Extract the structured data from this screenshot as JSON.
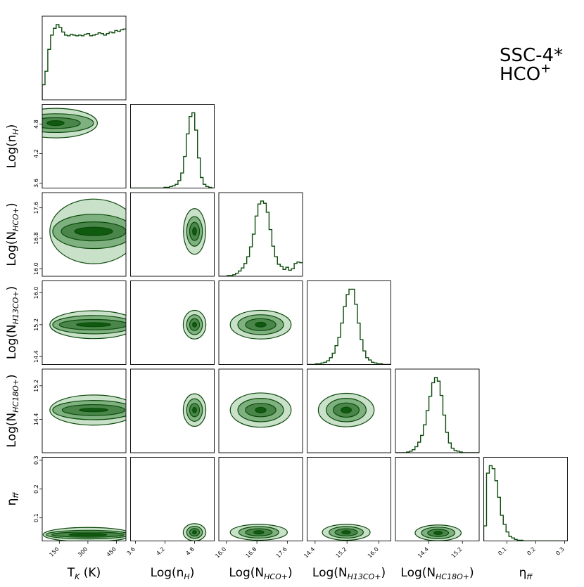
{
  "chart_data": {
    "type": "corner",
    "title": [
      "SSC-4*",
      "HCO",
      "+"
    ],
    "colors": {
      "line": "#0b4a0b",
      "fill1": "#c9e0c9",
      "fill2": "#7fb07f",
      "fill3": "#4a854a",
      "fill4": "#0f5a0f"
    },
    "parameters": [
      {
        "name": "T_K",
        "ylabel": "",
        "xlabel_main": "T",
        "xlabel_sub": "K",
        "xlabel_tail": " (K)",
        "range": [
          60,
          500
        ],
        "ticks": [
          "150",
          "300",
          "450"
        ]
      },
      {
        "name": "log_nH",
        "ylabel_main": "Log(n",
        "ylabel_sub": "H",
        "ylabel_tail": ")",
        "xlabel_main": "Log(n",
        "xlabel_sub": "H",
        "xlabel_tail": ")",
        "range": [
          3.5,
          5.2
        ],
        "ticks": [
          "3.6",
          "4.2",
          "4.8"
        ]
      },
      {
        "name": "log_N_HCO+",
        "ylabel_main": "Log(N",
        "ylabel_sub": "HCO+",
        "ylabel_tail": ")",
        "xlabel_main": "Log(N",
        "xlabel_sub": "HCO+",
        "xlabel_tail": ")",
        "range": [
          15.8,
          18.0
        ],
        "ticks": [
          "16.0",
          "16.8",
          "17.6"
        ]
      },
      {
        "name": "log_N_H13CO+",
        "ylabel_main": "Log(N",
        "ylabel_sub": "H13CO+",
        "ylabel_tail": ")",
        "xlabel_main": "Log(N",
        "xlabel_sub": "H13CO+",
        "xlabel_tail": ")",
        "range": [
          14.2,
          16.3
        ],
        "ticks": [
          "14.4",
          "15.2",
          "16.0"
        ]
      },
      {
        "name": "log_N_HC18O+",
        "ylabel_main": "Log(N",
        "ylabel_sub": "HC18O+",
        "ylabel_tail": ")",
        "xlabel_main": "Log(N",
        "xlabel_sub": "HC18O+",
        "xlabel_tail": ")",
        "range": [
          13.6,
          15.6
        ],
        "ticks": [
          "14.4",
          "15.2"
        ]
      },
      {
        "name": "eta_ff",
        "ylabel_main": "η",
        "ylabel_sub": "ff",
        "ylabel_tail": "",
        "xlabel_main": "η",
        "xlabel_sub": "ff",
        "xlabel_tail": "",
        "range": [
          0.02,
          0.31
        ],
        "ticks": [
          "0.1",
          "0.2",
          "0.3"
        ]
      }
    ],
    "histograms": [
      [
        0.2,
        0.38,
        0.67,
        0.86,
        0.95,
        1.0,
        0.96,
        0.9,
        0.86,
        0.85,
        0.87,
        0.86,
        0.85,
        0.86,
        0.85,
        0.87,
        0.88,
        0.85,
        0.86,
        0.87,
        0.89,
        0.88,
        0.86,
        0.88,
        0.9,
        0.89,
        0.92,
        0.91,
        0.93,
        0.94
      ],
      [
        0.0,
        0.0,
        0.0,
        0.0,
        0.0,
        0.0,
        0.0,
        0.0,
        0.0,
        0.0,
        0.0,
        0.0,
        0.01,
        0.01,
        0.02,
        0.03,
        0.05,
        0.1,
        0.2,
        0.42,
        0.72,
        0.95,
        1.0,
        0.77,
        0.4,
        0.14,
        0.05,
        0.02,
        0.01,
        0.0
      ],
      [
        0.0,
        0.0,
        0.0,
        0.01,
        0.01,
        0.02,
        0.04,
        0.07,
        0.11,
        0.17,
        0.26,
        0.39,
        0.56,
        0.8,
        0.96,
        1.0,
        0.97,
        0.85,
        0.62,
        0.4,
        0.26,
        0.16,
        0.13,
        0.09,
        0.12,
        0.08,
        0.1,
        0.17,
        0.19,
        0.18
      ],
      [
        0.0,
        0.0,
        0.0,
        0.01,
        0.01,
        0.02,
        0.03,
        0.05,
        0.09,
        0.15,
        0.25,
        0.36,
        0.55,
        0.77,
        0.93,
        1.0,
        1.0,
        0.8,
        0.55,
        0.33,
        0.18,
        0.09,
        0.06,
        0.03,
        0.02,
        0.01,
        0.01,
        0.0,
        0.0,
        0.0
      ],
      [
        0.0,
        0.0,
        0.0,
        0.0,
        0.01,
        0.02,
        0.04,
        0.08,
        0.14,
        0.23,
        0.37,
        0.56,
        0.75,
        0.93,
        1.0,
        0.95,
        0.76,
        0.5,
        0.27,
        0.13,
        0.06,
        0.03,
        0.02,
        0.01,
        0.0,
        0.0,
        0.0,
        0.0,
        0.0,
        0.0
      ],
      [
        0.2,
        0.9,
        1.0,
        0.96,
        0.8,
        0.58,
        0.34,
        0.22,
        0.12,
        0.06,
        0.04,
        0.02,
        0.01,
        0.01,
        0.0,
        0.0,
        0.0,
        0.0,
        0.0,
        0.0,
        0.0,
        0.0,
        0.0,
        0.0,
        0.0,
        0.0,
        0.0,
        0.0,
        0.0,
        0.0
      ]
    ],
    "contours_2d": [
      {
        "x": 0,
        "y": 1,
        "center": [
          130,
          4.82
        ],
        "widths": [
          [
            440,
            0.6
          ],
          [
            400,
            0.38
          ],
          [
            260,
            0.22
          ],
          [
            90,
            0.1
          ]
        ]
      },
      {
        "x": 0,
        "y": 2,
        "center": [
          330,
          16.98
        ],
        "widths": [
          [
            460,
            1.7
          ],
          [
            430,
            0.9
          ],
          [
            340,
            0.5
          ],
          [
            200,
            0.22
          ]
        ]
      },
      {
        "x": 0,
        "y": 3,
        "center": [
          330,
          15.2
        ],
        "widths": [
          [
            460,
            0.7
          ],
          [
            430,
            0.46
          ],
          [
            360,
            0.26
          ],
          [
            180,
            0.1
          ]
        ]
      },
      {
        "x": 0,
        "y": 4,
        "center": [
          330,
          14.62
        ],
        "widths": [
          [
            460,
            0.72
          ],
          [
            430,
            0.46
          ],
          [
            330,
            0.26
          ],
          [
            150,
            0.08
          ]
        ]
      },
      {
        "x": 0,
        "y": 5,
        "center": [
          300,
          0.042
        ],
        "widths": [
          [
            470,
            0.05
          ],
          [
            440,
            0.03
          ],
          [
            380,
            0.018
          ],
          [
            200,
            0.01
          ]
        ]
      },
      {
        "x": 1,
        "y": 2,
        "center": [
          4.8,
          16.98
        ],
        "widths": [
          [
            0.45,
            1.2
          ],
          [
            0.32,
            0.78
          ],
          [
            0.2,
            0.48
          ],
          [
            0.08,
            0.2
          ]
        ]
      },
      {
        "x": 1,
        "y": 3,
        "center": [
          4.8,
          15.2
        ],
        "widths": [
          [
            0.46,
            0.72
          ],
          [
            0.32,
            0.5
          ],
          [
            0.2,
            0.3
          ],
          [
            0.08,
            0.12
          ]
        ]
      },
      {
        "x": 1,
        "y": 4,
        "center": [
          4.8,
          14.62
        ],
        "widths": [
          [
            0.46,
            0.78
          ],
          [
            0.32,
            0.54
          ],
          [
            0.2,
            0.32
          ],
          [
            0.08,
            0.13
          ]
        ]
      },
      {
        "x": 1,
        "y": 5,
        "center": [
          4.8,
          0.05
        ],
        "widths": [
          [
            0.46,
            0.06
          ],
          [
            0.32,
            0.042
          ],
          [
            0.2,
            0.026
          ],
          [
            0.08,
            0.012
          ]
        ]
      },
      {
        "x": 2,
        "y": 3,
        "center": [
          16.9,
          15.2
        ],
        "widths": [
          [
            1.6,
            0.72
          ],
          [
            1.2,
            0.5
          ],
          [
            0.8,
            0.3
          ],
          [
            0.28,
            0.12
          ]
        ]
      },
      {
        "x": 2,
        "y": 4,
        "center": [
          16.9,
          14.62
        ],
        "widths": [
          [
            1.6,
            0.82
          ],
          [
            1.2,
            0.56
          ],
          [
            0.8,
            0.32
          ],
          [
            0.28,
            0.13
          ]
        ]
      },
      {
        "x": 2,
        "y": 5,
        "center": [
          16.85,
          0.05
        ],
        "widths": [
          [
            1.5,
            0.055
          ],
          [
            1.05,
            0.04
          ],
          [
            0.7,
            0.025
          ],
          [
            0.26,
            0.012
          ]
        ]
      },
      {
        "x": 3,
        "y": 4,
        "center": [
          15.18,
          14.62
        ],
        "widths": [
          [
            1.4,
            0.8
          ],
          [
            1.0,
            0.56
          ],
          [
            0.65,
            0.34
          ],
          [
            0.26,
            0.14
          ]
        ]
      },
      {
        "x": 3,
        "y": 5,
        "center": [
          15.18,
          0.05
        ],
        "widths": [
          [
            1.2,
            0.055
          ],
          [
            0.86,
            0.04
          ],
          [
            0.56,
            0.025
          ],
          [
            0.22,
            0.012
          ]
        ]
      },
      {
        "x": 4,
        "y": 5,
        "center": [
          14.62,
          0.048
        ],
        "widths": [
          [
            1.1,
            0.055
          ],
          [
            0.8,
            0.04
          ],
          [
            0.5,
            0.025
          ],
          [
            0.2,
            0.012
          ]
        ]
      }
    ]
  }
}
